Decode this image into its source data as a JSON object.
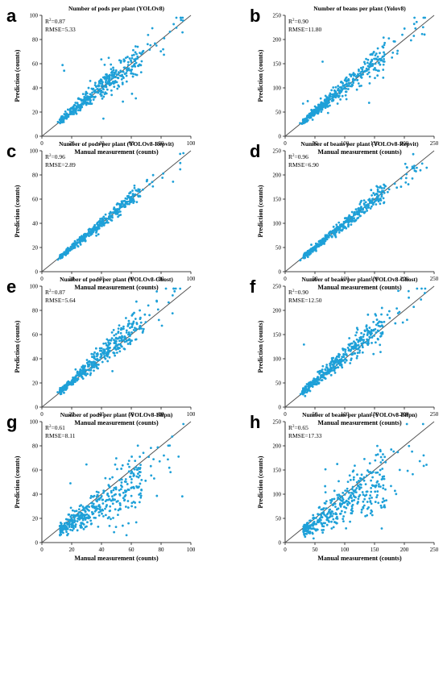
{
  "colors": {
    "point": "#1ea0d8",
    "identity_line": "#555555",
    "axis": "#000000"
  },
  "panel_layout": {
    "columns": 2,
    "rows": 4
  },
  "chart_data": [
    {
      "panel_letter": "a",
      "type": "scatter",
      "title": "Number of pods per plant (YOLOv8)",
      "xlabel": "Manual measurement (counts)",
      "ylabel": "Prediction (counts)",
      "xlim": [
        0,
        100
      ],
      "ylim": [
        0,
        100
      ],
      "xticks": [
        0,
        20,
        40,
        60,
        80,
        100
      ],
      "yticks": [
        0,
        20,
        40,
        60,
        80,
        100
      ],
      "r2_label": "R",
      "r2_sup": "2",
      "r2_value": "=0.87",
      "rmse": "RMSE=5.33",
      "identity_line": true,
      "n_points": 400,
      "noise": 0.11,
      "bias": 0.02,
      "outlier_rate": 0.03,
      "seed": 11
    },
    {
      "panel_letter": "b",
      "type": "scatter",
      "title": "Number of beans per plant (Yolov8)",
      "xlabel": "Manual measurement (counts)",
      "ylabel": "Prediction (counts)",
      "xlim": [
        0,
        250
      ],
      "ylim": [
        0,
        250
      ],
      "xticks": [
        0,
        50,
        100,
        150,
        200,
        250
      ],
      "yticks": [
        0,
        50,
        100,
        150,
        200,
        250
      ],
      "r2_label": "R",
      "r2_sup": "2",
      "r2_value": "=0.90",
      "rmse": "RMSE=11.80",
      "identity_line": true,
      "n_points": 400,
      "noise": 0.1,
      "bias": 0.01,
      "outlier_rate": 0.03,
      "seed": 22
    },
    {
      "panel_letter": "c",
      "type": "scatter",
      "title": "Number of pods per plant (YOLOv8-Repvit)",
      "xlabel": "Manual measurement (counts)",
      "ylabel": "Prediction (counts)",
      "xlim": [
        0,
        100
      ],
      "ylim": [
        0,
        100
      ],
      "xticks": [
        0,
        20,
        40,
        60,
        80,
        100
      ],
      "yticks": [
        0,
        20,
        40,
        60,
        80,
        100
      ],
      "r2_label": "R",
      "r2_sup": "2",
      "r2_value": "=0.96",
      "rmse": "RMSE=2.89",
      "identity_line": true,
      "n_points": 400,
      "noise": 0.06,
      "bias": 0.0,
      "outlier_rate": 0.0,
      "seed": 33
    },
    {
      "panel_letter": "d",
      "type": "scatter",
      "title": "Number of beans per plant (YOLOv8-Repvit)",
      "xlabel": "Manual measurement (counts)",
      "ylabel": "Prediction (counts)",
      "xlim": [
        0,
        250
      ],
      "ylim": [
        0,
        250
      ],
      "xticks": [
        0,
        50,
        100,
        150,
        200,
        250
      ],
      "yticks": [
        0,
        50,
        100,
        150,
        200,
        250
      ],
      "r2_label": "R",
      "r2_sup": "2",
      "r2_value": "=0.96",
      "rmse": "RMSE=6.90",
      "identity_line": true,
      "n_points": 400,
      "noise": 0.07,
      "bias": 0.0,
      "outlier_rate": 0.0,
      "seed": 44
    },
    {
      "panel_letter": "e",
      "type": "scatter",
      "title": "Number of pods per plant (YOLOv8-Ghost)",
      "xlabel": "Manual measurement (counts)",
      "ylabel": "Prediction (counts)",
      "xlim": [
        0,
        100
      ],
      "ylim": [
        0,
        100
      ],
      "xticks": [
        0,
        20,
        40,
        60,
        80,
        100
      ],
      "yticks": [
        0,
        20,
        40,
        60,
        80,
        100
      ],
      "r2_label": "R",
      "r2_sup": "2",
      "r2_value": "=0.87",
      "rmse": "RMSE=5.64",
      "identity_line": true,
      "n_points": 400,
      "noise": 0.11,
      "bias": 0.06,
      "outlier_rate": 0.01,
      "seed": 55
    },
    {
      "panel_letter": "f",
      "type": "scatter",
      "title": "Number of beans per plant (YOLOv8-Ghost)",
      "xlabel": "Manual measurement (counts)",
      "ylabel": "Prediction (counts)",
      "xlim": [
        0,
        250
      ],
      "ylim": [
        0,
        250
      ],
      "xticks": [
        0,
        50,
        100,
        150,
        200,
        250
      ],
      "yticks": [
        0,
        50,
        100,
        150,
        200,
        250
      ],
      "r2_label": "R",
      "r2_sup": "2",
      "r2_value": "=0.90",
      "rmse": "RMSE=12.50",
      "identity_line": true,
      "n_points": 400,
      "noise": 0.11,
      "bias": 0.06,
      "outlier_rate": 0.01,
      "seed": 66
    },
    {
      "panel_letter": "g",
      "type": "scatter",
      "title": "Number of pods per plant (YOLOv8-Bifpn)",
      "xlabel": "Manual measurement (counts)",
      "ylabel": "Prediction (counts)",
      "xlim": [
        0,
        100
      ],
      "ylim": [
        0,
        100
      ],
      "xticks": [
        0,
        20,
        40,
        60,
        80,
        100
      ],
      "yticks": [
        0,
        20,
        40,
        60,
        80,
        100
      ],
      "r2_label": "R",
      "r2_sup": "2",
      "r2_value": "=0.61",
      "rmse": "RMSE=8.11",
      "identity_line": true,
      "n_points": 400,
      "noise": 0.22,
      "bias": -0.18,
      "outlier_rate": 0.02,
      "seed": 77
    },
    {
      "panel_letter": "h",
      "type": "scatter",
      "title": "Number of beans per plant (YOLOv8-Bifpn)",
      "xlabel": "Manual measurement (counts)",
      "ylabel": "Prediction (counts)",
      "xlim": [
        0,
        250
      ],
      "ylim": [
        0,
        250
      ],
      "xticks": [
        0,
        50,
        100,
        150,
        200,
        250
      ],
      "yticks": [
        0,
        50,
        100,
        150,
        200,
        250
      ],
      "r2_label": "R",
      "r2_sup": "2",
      "r2_value": "=0.65",
      "rmse": "RMSE=17.33",
      "identity_line": true,
      "n_points": 400,
      "noise": 0.22,
      "bias": -0.18,
      "outlier_rate": 0.02,
      "seed": 88
    }
  ]
}
